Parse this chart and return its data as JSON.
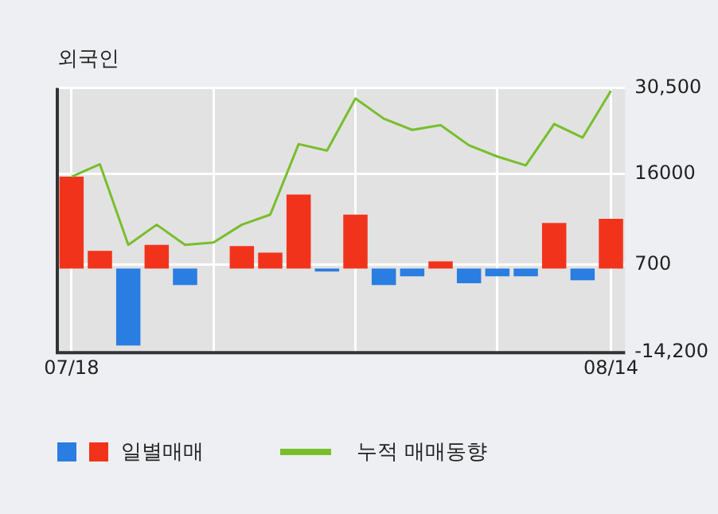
{
  "chart_data": {
    "type": "bar",
    "title": "외국인",
    "categories": [
      "07/18",
      null,
      null,
      null,
      null,
      null,
      null,
      null,
      null,
      null,
      null,
      null,
      null,
      null,
      null,
      null,
      null,
      null,
      null,
      "08/14"
    ],
    "series": [
      {
        "name": "일별매매",
        "colors": [
          "#f2331b",
          "#f2331b",
          "#2a7de1",
          "#f2331b",
          "#2a7de1",
          null,
          "#f2331b",
          "#f2331b",
          "#f2331b",
          "#2a7de1",
          "#f2331b",
          "#2a7de1",
          "#2a7de1",
          "#f2331b",
          "#2a7de1",
          "#2a7de1",
          "#2a7de1",
          "#f2331b",
          "#2a7de1",
          "#f2331b"
        ],
        "values": [
          15500,
          3000,
          -13000,
          4000,
          -2800,
          null,
          3800,
          2700,
          12500,
          -500,
          9100,
          -2800,
          -1300,
          1200,
          -2500,
          -1300,
          -1300,
          7700,
          -2000,
          8400
        ]
      },
      {
        "name": "누적 매매동향",
        "type": "line",
        "color": "#78be2c",
        "values": [
          15500,
          17600,
          4000,
          7400,
          4000,
          4400,
          7400,
          9100,
          21000,
          19900,
          28700,
          25300,
          23400,
          24200,
          20800,
          18900,
          17400,
          24400,
          22100,
          30000
        ]
      }
    ],
    "ylim": [
      -14200,
      30500
    ],
    "yticks": [
      {
        "value": 30500,
        "label": "30,500"
      },
      16000,
      700,
      {
        "value": -14200,
        "label": "-14,200"
      }
    ],
    "grid": true,
    "legend": "bottom",
    "marker": "none",
    "line_style": "solid"
  }
}
